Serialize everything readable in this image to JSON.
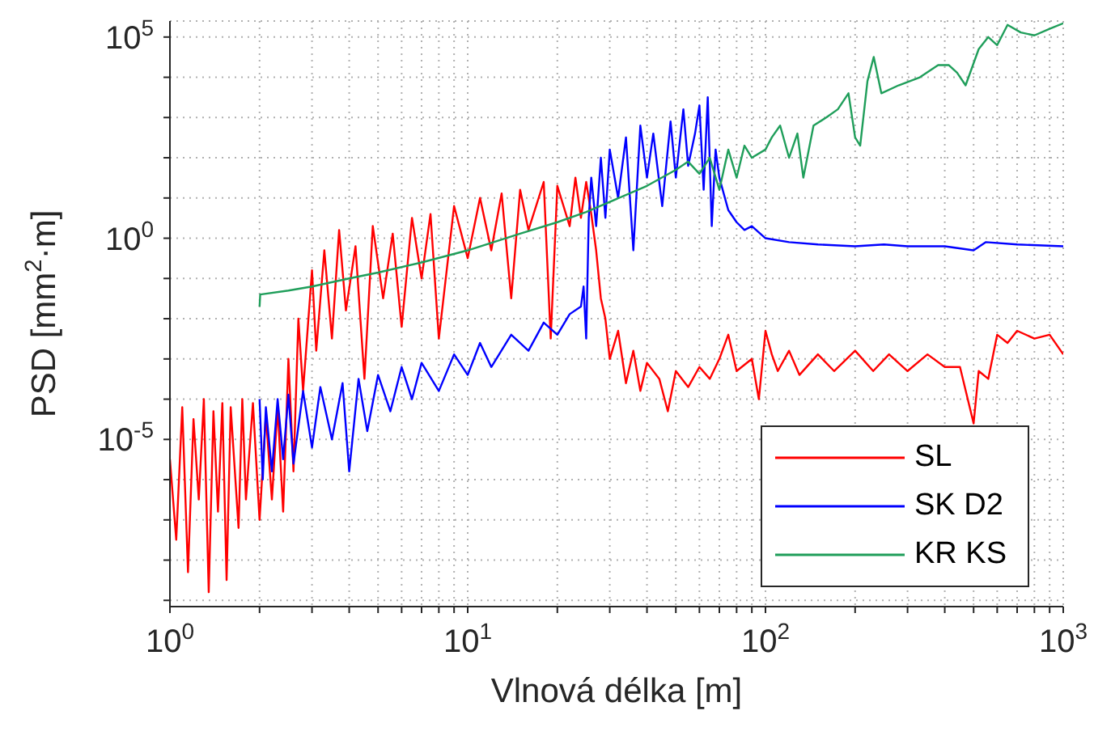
{
  "chart_data": {
    "type": "line",
    "xlabel": "Vlnová délka [m]",
    "ylabel": "PSD [mm$^{2}$·m]",
    "log": "xy",
    "grid": true,
    "legend": "bottom right",
    "xlim": [
      1,
      1000
    ],
    "ylim": [
      7e-10,
      250000.0
    ],
    "xticks": [
      {
        "value": 1,
        "label": "10$^{0}$"
      },
      {
        "value": 2,
        "label": null
      },
      {
        "value": 3,
        "label": null
      },
      {
        "value": 4,
        "label": null
      },
      {
        "value": 5,
        "label": null
      },
      {
        "value": 6,
        "label": null
      },
      {
        "value": 7,
        "label": null
      },
      {
        "value": 8,
        "label": null
      },
      {
        "value": 9,
        "label": null
      },
      {
        "value": 10,
        "label": "10$^{1}$"
      },
      {
        "value": 20,
        "label": null
      },
      {
        "value": 30,
        "label": null
      },
      {
        "value": 40,
        "label": null
      },
      {
        "value": 50,
        "label": null
      },
      {
        "value": 60,
        "label": null
      },
      {
        "value": 70,
        "label": null
      },
      {
        "value": 80,
        "label": null
      },
      {
        "value": 90,
        "label": null
      },
      {
        "value": 100,
        "label": "10$^{2}$"
      },
      {
        "value": 200,
        "label": null
      },
      {
        "value": 300,
        "label": null
      },
      {
        "value": 400,
        "label": null
      },
      {
        "value": 500,
        "label": null
      },
      {
        "value": 600,
        "label": null
      },
      {
        "value": 700,
        "label": null
      },
      {
        "value": 800,
        "label": null
      },
      {
        "value": 900,
        "label": null
      },
      {
        "value": 1000,
        "label": "10$^{3}$"
      }
    ],
    "yticks": [
      {
        "value": 1e-09,
        "label": null
      },
      {
        "value": 1e-08,
        "label": null
      },
      {
        "value": 1e-07,
        "label": null
      },
      {
        "value": 1e-06,
        "label": null
      },
      {
        "value": 1e-05,
        "label": "10$^{-5}$"
      },
      {
        "value": 0.0001,
        "label": null
      },
      {
        "value": 0.001,
        "label": null
      },
      {
        "value": 0.01,
        "label": null
      },
      {
        "value": 0.1,
        "label": null
      },
      {
        "value": 1,
        "label": "10$^{0}$"
      },
      {
        "value": 10,
        "label": null
      },
      {
        "value": 100,
        "label": null
      },
      {
        "value": 1000,
        "label": null
      },
      {
        "value": 10000,
        "label": null
      },
      {
        "value": 100000,
        "label": "10$^{5}$"
      }
    ],
    "series": [
      {
        "name": "SL",
        "color": "#ff0000",
        "x": [
          1.0,
          1.05,
          1.1,
          1.15,
          1.2,
          1.25,
          1.3,
          1.35,
          1.4,
          1.45,
          1.5,
          1.55,
          1.6,
          1.7,
          1.75,
          1.8,
          1.9,
          2.0,
          2.1,
          2.2,
          2.3,
          2.4,
          2.5,
          2.6,
          2.7,
          2.8,
          3.0,
          3.1,
          3.3,
          3.5,
          3.7,
          3.9,
          4.2,
          4.5,
          4.8,
          5.2,
          5.6,
          6.0,
          6.5,
          7.0,
          7.5,
          8.0,
          9,
          10,
          11,
          12,
          13,
          14,
          15,
          16,
          18,
          19,
          20,
          22,
          23,
          24,
          25,
          26,
          27,
          28,
          29,
          30,
          32,
          34,
          36,
          38,
          40,
          44,
          47,
          50,
          55,
          60,
          65,
          70,
          75,
          80,
          90,
          95,
          100,
          105,
          110,
          120,
          130,
          150,
          170,
          200,
          230,
          260,
          300,
          350,
          400,
          450,
          500,
          520,
          560,
          600,
          650,
          700,
          800,
          900,
          1000
        ],
        "values": [
          3.2e-06,
          3.2e-08,
          6.3e-05,
          5e-09,
          3.2e-05,
          3.2e-07,
          0.0001,
          1.6e-09,
          5e-05,
          1.6e-07,
          8e-05,
          3.2e-09,
          6.3e-05,
          6.3e-08,
          0.0001,
          3.2e-07,
          8e-05,
          1e-07,
          4e-05,
          3.2e-07,
          6.3e-05,
          1.6e-07,
          0.001,
          1.6e-06,
          0.01,
          0.00016,
          0.16,
          0.0016,
          0.5,
          0.0032,
          1.6,
          0.016,
          0.63,
          0.00032,
          2,
          0.032,
          1.3,
          0.0063,
          3.2,
          0.1,
          4,
          0.0032,
          6.3,
          0.32,
          10,
          0.5,
          13,
          0.032,
          16,
          1.6,
          25,
          0.0032,
          20,
          2,
          32,
          3.2,
          25,
          4,
          0.5,
          0.032,
          0.01,
          0.001,
          0.005,
          0.00025,
          0.0016,
          0.00016,
          0.0008,
          0.00032,
          5e-05,
          0.0005,
          0.0002,
          0.00063,
          0.00032,
          0.001,
          0.004,
          0.0005,
          0.001,
          0.0001,
          0.005,
          0.0013,
          0.0005,
          0.0016,
          0.0004,
          0.0013,
          0.0005,
          0.0016,
          0.0005,
          0.0013,
          0.0005,
          0.0013,
          0.00063,
          0.00063,
          2.5e-05,
          0.0005,
          0.00032,
          0.004,
          0.0025,
          0.005,
          0.0032,
          0.004,
          0.0013
        ]
      },
      {
        "name": "SK D2",
        "color": "#0000ff",
        "x": [
          2.0,
          2.05,
          2.1,
          2.2,
          2.3,
          2.4,
          2.5,
          2.6,
          2.8,
          3.0,
          3.2,
          3.5,
          3.8,
          4.0,
          4.3,
          4.6,
          5.0,
          5.5,
          6.0,
          6.5,
          7.0,
          8.0,
          9,
          10,
          11,
          12,
          14,
          16,
          18,
          20,
          22,
          24,
          24.5,
          25,
          25.5,
          26,
          27,
          28,
          29,
          30,
          32,
          34,
          36,
          38,
          40,
          42,
          45,
          48,
          50,
          53,
          55,
          58,
          60,
          62,
          64,
          66,
          68,
          70,
          75,
          80,
          85,
          90,
          100,
          120,
          150,
          200,
          250,
          300,
          400,
          500,
          550,
          700,
          1000
        ],
        "values": [
          0.0001,
          1e-06,
          6.3e-05,
          1.6e-06,
          0.0001,
          3.2e-06,
          0.00013,
          2.5e-06,
          0.00016,
          6.3e-06,
          0.0002,
          1e-05,
          0.00025,
          1.6e-06,
          0.00032,
          1.6e-05,
          0.0004,
          5e-05,
          0.00063,
          0.0001,
          0.0008,
          0.00016,
          0.0013,
          0.0004,
          0.0025,
          0.00063,
          0.004,
          0.0016,
          0.008,
          0.004,
          0.013,
          0.02,
          0.063,
          0.0032,
          3.2,
          32,
          2,
          100,
          3.2,
          160,
          10,
          320,
          0.5,
          630,
          32,
          400,
          6.3,
          800,
          32,
          1600,
          63,
          400,
          2000,
          16,
          3200,
          2,
          160,
          32,
          5,
          2.5,
          1.6,
          2,
          1,
          0.8,
          0.7,
          0.63,
          0.7,
          0.63,
          0.63,
          0.5,
          0.8,
          0.7,
          0.63
        ]
      },
      {
        "name": "KR KS",
        "color": "#1f9e5a",
        "x": [
          2.0,
          2.01,
          2.5,
          3,
          4,
          5,
          7,
          10,
          15,
          20,
          25,
          30,
          40,
          50,
          55,
          60,
          65,
          70,
          75,
          80,
          85,
          90,
          100,
          105,
          112,
          120,
          128,
          134,
          145,
          160,
          175,
          190,
          200,
          208,
          220,
          231,
          245,
          280,
          330,
          380,
          413,
          440,
          470,
          520,
          560,
          600,
          650,
          720,
          800,
          900,
          1000
        ],
        "values": [
          0.02,
          0.04,
          0.05,
          0.063,
          0.1,
          0.14,
          0.25,
          0.5,
          1.3,
          2.5,
          4.5,
          8,
          20,
          50,
          80,
          40,
          100,
          16,
          160,
          32,
          200,
          100,
          160,
          320,
          630,
          100,
          400,
          32,
          630,
          1000,
          1600,
          4000,
          320,
          200,
          8000,
          32000,
          4000,
          6300,
          10000,
          20000,
          20000,
          13000,
          6300,
          50000,
          100000,
          63000,
          200000,
          130000,
          110000,
          160000,
          220000
        ]
      }
    ]
  }
}
